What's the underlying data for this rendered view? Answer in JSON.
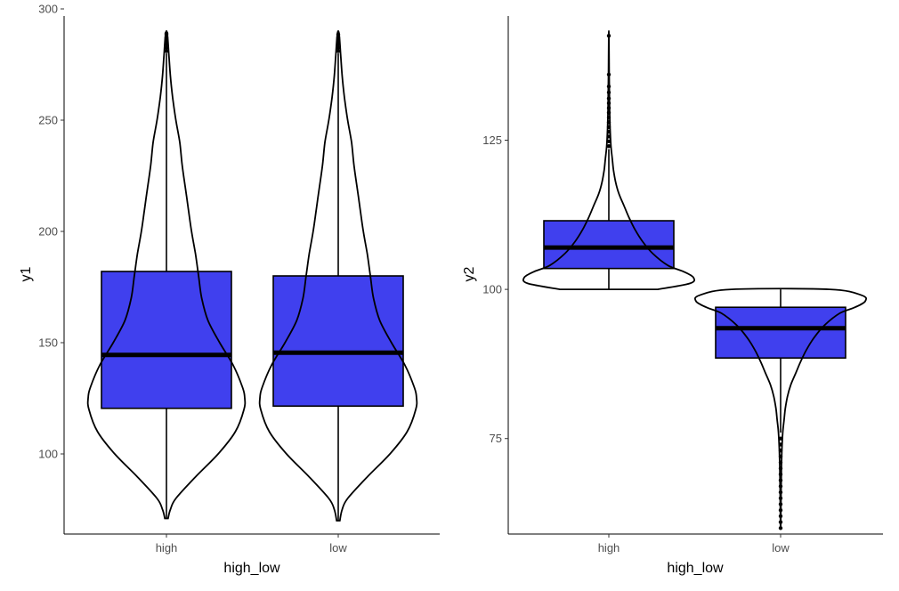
{
  "chart_data": [
    {
      "type": "box+violin",
      "xlabel": "high_low",
      "ylabel": "y1",
      "categories": [
        "high",
        "low"
      ],
      "ylim": [
        64,
        300
      ],
      "yticks": [
        100,
        150,
        200,
        250,
        300
      ],
      "grid": false,
      "legend": "none",
      "box_fill": "#4040ee",
      "series": [
        {
          "category": "high",
          "q1": 120.5,
          "median": 144.5,
          "q3": 182.0,
          "whisker_low": 71.0,
          "whisker_high": 280.0,
          "outliers": [
            281,
            282.5,
            284,
            285.5,
            287,
            288.5,
            289
          ],
          "violin_range": [
            71,
            289
          ],
          "violin_density": [
            [
              71,
              0.02
            ],
            [
              75,
              0.05
            ],
            [
              80,
              0.12
            ],
            [
              90,
              0.38
            ],
            [
              100,
              0.66
            ],
            [
              110,
              0.88
            ],
            [
              120,
              0.99
            ],
            [
              125,
              1.0
            ],
            [
              130,
              0.97
            ],
            [
              140,
              0.85
            ],
            [
              150,
              0.68
            ],
            [
              160,
              0.53
            ],
            [
              170,
              0.45
            ],
            [
              180,
              0.41
            ],
            [
              190,
              0.37
            ],
            [
              200,
              0.32
            ],
            [
              210,
              0.28
            ],
            [
              220,
              0.24
            ],
            [
              230,
              0.2
            ],
            [
              240,
              0.17
            ],
            [
              250,
              0.12
            ],
            [
              260,
              0.08
            ],
            [
              270,
              0.05
            ],
            [
              280,
              0.03
            ],
            [
              289,
              0.01
            ]
          ]
        },
        {
          "category": "low",
          "q1": 121.5,
          "median": 145.5,
          "q3": 180.0,
          "whisker_low": 70.0,
          "whisker_high": 280.0,
          "outliers": [
            281,
            282.5,
            284,
            285.5,
            287,
            288.5
          ],
          "violin_range": [
            70,
            289
          ],
          "violin_density": [
            [
              70,
              0.02
            ],
            [
              75,
              0.05
            ],
            [
              80,
              0.12
            ],
            [
              90,
              0.38
            ],
            [
              100,
              0.66
            ],
            [
              110,
              0.88
            ],
            [
              120,
              0.99
            ],
            [
              125,
              1.0
            ],
            [
              130,
              0.97
            ],
            [
              140,
              0.85
            ],
            [
              150,
              0.68
            ],
            [
              160,
              0.53
            ],
            [
              170,
              0.45
            ],
            [
              180,
              0.41
            ],
            [
              190,
              0.37
            ],
            [
              200,
              0.32
            ],
            [
              210,
              0.28
            ],
            [
              220,
              0.24
            ],
            [
              230,
              0.2
            ],
            [
              240,
              0.17
            ],
            [
              250,
              0.12
            ],
            [
              260,
              0.08
            ],
            [
              270,
              0.05
            ],
            [
              280,
              0.03
            ],
            [
              289,
              0.01
            ]
          ]
        }
      ]
    },
    {
      "type": "box+violin",
      "xlabel": "high_low",
      "ylabel": "y2",
      "categories": [
        "high",
        "low"
      ],
      "ylim": [
        59,
        147
      ],
      "yticks": [
        75,
        100,
        125
      ],
      "grid": false,
      "legend": "none",
      "box_fill": "#4040ee",
      "series": [
        {
          "category": "high",
          "q1": 103.5,
          "median": 107.0,
          "q3": 111.5,
          "whisker_low": 100.0,
          "whisker_high": 123.5,
          "outliers": [
            124,
            124.8,
            125.6,
            126.4,
            127.2,
            128,
            128.8,
            129.6,
            130.4,
            131.2,
            132,
            133,
            134,
            136,
            142.5
          ],
          "violin_range": [
            100,
            142.5
          ],
          "violin_density": [
            [
              100,
              0.58
            ],
            [
              101,
              0.96
            ],
            [
              102,
              1.0
            ],
            [
              103,
              0.88
            ],
            [
              104,
              0.7
            ],
            [
              106,
              0.52
            ],
            [
              108,
              0.4
            ],
            [
              110,
              0.31
            ],
            [
              112,
              0.24
            ],
            [
              114,
              0.18
            ],
            [
              116,
              0.12
            ],
            [
              118,
              0.08
            ],
            [
              120,
              0.055
            ],
            [
              122,
              0.04
            ],
            [
              124,
              0.025
            ],
            [
              127,
              0.015
            ],
            [
              131,
              0.008
            ],
            [
              136,
              0.004
            ],
            [
              142.5,
              0.001
            ]
          ]
        },
        {
          "category": "low",
          "q1": 88.5,
          "median": 93.5,
          "q3": 97.0,
          "whisker_low": 76.0,
          "whisker_high": 100.0,
          "outliers": [
            75,
            74,
            73,
            72,
            71,
            70,
            69,
            68,
            67,
            66,
            65,
            64,
            63,
            62,
            61,
            60
          ],
          "violin_range": [
            60,
            100
          ],
          "violin_density": [
            [
              100,
              0.58
            ],
            [
              99,
              0.96
            ],
            [
              98,
              1.0
            ],
            [
              97,
              0.88
            ],
            [
              96,
              0.7
            ],
            [
              94,
              0.52
            ],
            [
              92,
              0.4
            ],
            [
              90,
              0.31
            ],
            [
              88,
              0.24
            ],
            [
              86,
              0.18
            ],
            [
              84,
              0.12
            ],
            [
              82,
              0.08
            ],
            [
              80,
              0.055
            ],
            [
              78,
              0.04
            ],
            [
              76,
              0.025
            ],
            [
              73,
              0.015
            ],
            [
              69,
              0.008
            ],
            [
              64,
              0.004
            ],
            [
              60,
              0.001
            ]
          ]
        }
      ]
    }
  ]
}
